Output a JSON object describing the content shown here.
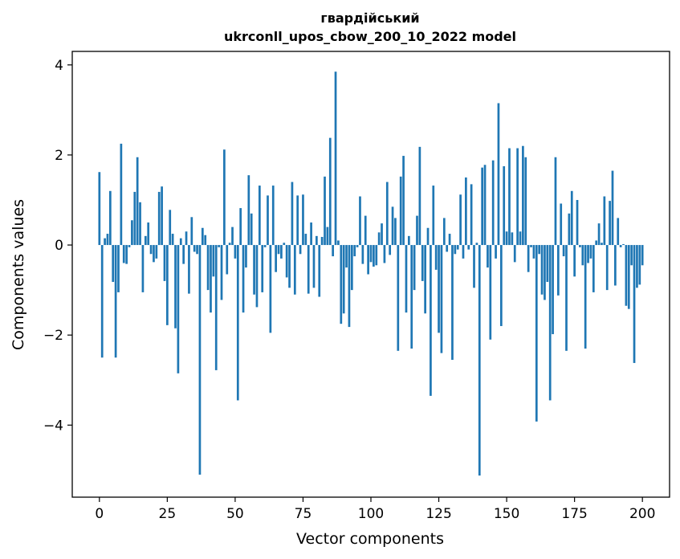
{
  "chart_data": {
    "type": "bar",
    "title_line1": "гвардійський",
    "title_line2": "ukrconll_upos_cbow_200_10_2022 model",
    "xlabel": "Vector components",
    "ylabel": "Components values",
    "xlim": [
      -10,
      210
    ],
    "ylim": [
      -5.6,
      4.3
    ],
    "xticks": [
      0,
      25,
      50,
      75,
      100,
      125,
      150,
      175,
      200
    ],
    "xtick_labels": [
      "0",
      "25",
      "50",
      "75",
      "100",
      "125",
      "150",
      "175",
      "200"
    ],
    "yticks": [
      -4,
      -2,
      0,
      2,
      4
    ],
    "ytick_labels": [
      "−4",
      "−2",
      "0",
      "2",
      "4"
    ],
    "grid": false,
    "bar_color": "#1f77b4",
    "values": [
      1.62,
      -2.5,
      0.15,
      0.25,
      1.2,
      -0.82,
      -2.5,
      -1.05,
      2.25,
      -0.4,
      -0.42,
      -0.05,
      0.55,
      1.18,
      1.95,
      0.95,
      -1.05,
      0.2,
      0.5,
      -0.2,
      -0.38,
      -0.3,
      1.18,
      1.3,
      -0.8,
      -1.78,
      0.78,
      0.25,
      -1.85,
      -2.85,
      0.15,
      -0.42,
      0.3,
      -1.08,
      0.62,
      -0.15,
      -0.2,
      -5.1,
      0.38,
      0.22,
      -1.0,
      -1.5,
      -0.7,
      -2.78,
      -0.05,
      -1.22,
      2.12,
      -0.65,
      0.05,
      0.4,
      -0.3,
      -3.45,
      0.82,
      -1.5,
      -0.5,
      1.55,
      0.7,
      -1.1,
      -1.38,
      1.32,
      -1.05,
      -0.05,
      1.1,
      -1.95,
      1.32,
      -0.6,
      -0.2,
      -0.3,
      0.05,
      -0.72,
      -0.95,
      1.4,
      -1.1,
      1.1,
      -0.2,
      1.12,
      0.25,
      -1.08,
      0.5,
      -0.95,
      0.2,
      -1.15,
      0.18,
      1.52,
      0.4,
      2.38,
      -0.25,
      3.85,
      0.1,
      -1.75,
      -1.52,
      -0.5,
      -1.82,
      -1.0,
      -0.25,
      -0.05,
      1.08,
      -0.42,
      0.65,
      -0.65,
      -0.38,
      -0.48,
      -0.45,
      0.28,
      0.48,
      -0.4,
      1.4,
      -0.22,
      0.85,
      0.6,
      -2.35,
      1.52,
      1.98,
      -1.5,
      0.2,
      -2.3,
      -1.0,
      0.65,
      2.18,
      -0.8,
      -1.52,
      0.38,
      -3.35,
      1.32,
      -0.55,
      -1.95,
      -2.4,
      0.6,
      -0.15,
      0.25,
      -2.55,
      -0.2,
      -0.1,
      1.12,
      -0.3,
      1.5,
      -0.1,
      1.35,
      -0.95,
      0.05,
      -5.12,
      1.72,
      1.78,
      -0.5,
      -2.1,
      1.88,
      -0.3,
      3.15,
      -1.8,
      1.75,
      0.3,
      2.15,
      0.28,
      -0.38,
      2.15,
      0.3,
      2.2,
      1.95,
      -0.6,
      -0.05,
      -0.3,
      -3.92,
      -0.2,
      -1.1,
      -1.22,
      -0.82,
      -3.45,
      -1.98,
      1.95,
      -1.12,
      0.92,
      -0.25,
      -2.35,
      0.7,
      1.2,
      -0.7,
      1.0,
      -0.05,
      -0.45,
      -2.3,
      -0.4,
      -0.3,
      -1.05,
      0.1,
      0.48,
      0.05,
      1.08,
      -1.0,
      0.98,
      1.65,
      -0.9,
      0.6,
      -0.05,
      0.02,
      -1.35,
      -1.42,
      -0.45,
      -2.62,
      -0.95,
      -0.88,
      -0.45
    ]
  }
}
